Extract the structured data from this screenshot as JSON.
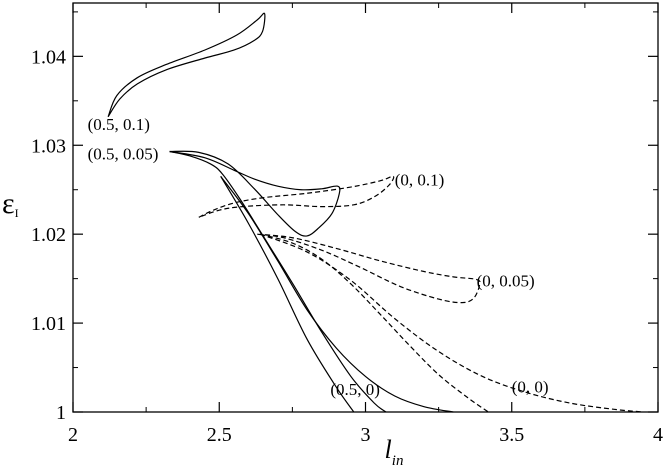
{
  "chart_data": {
    "type": "line",
    "title": "",
    "xlabel": "l",
    "xlabel_sub": "in",
    "ylabel": "ε",
    "ylabel_sub": "I",
    "xlim": [
      2,
      4
    ],
    "ylim": [
      1.0,
      1.046
    ],
    "grid": false,
    "legend": "none",
    "x_ticks": [
      2,
      2.5,
      3,
      3.5,
      4
    ],
    "x_tick_labels": [
      "2",
      "2.5",
      "3",
      "3.5",
      "4"
    ],
    "y_ticks": [
      1.0,
      1.01,
      1.02,
      1.03,
      1.04
    ],
    "y_tick_labels": [
      "1",
      "1.01",
      "1.02",
      "1.03",
      "1.04"
    ],
    "series": [
      {
        "label": "(0.5, 0.1)",
        "style": "solid",
        "points": [
          [
            2.12,
            1.0332
          ],
          [
            2.16,
            1.0352
          ],
          [
            2.22,
            1.0369
          ],
          [
            2.32,
            1.0385
          ],
          [
            2.45,
            1.0398
          ],
          [
            2.55,
            1.0407
          ],
          [
            2.62,
            1.0418
          ],
          [
            2.648,
            1.0428
          ],
          [
            2.655,
            1.0448
          ],
          [
            2.63,
            1.0441
          ],
          [
            2.56,
            1.0424
          ],
          [
            2.45,
            1.0407
          ],
          [
            2.32,
            1.0391
          ],
          [
            2.22,
            1.0376
          ],
          [
            2.15,
            1.0356
          ],
          [
            2.12,
            1.0332
          ]
        ]
      },
      {
        "label": "(0.5, 0.05)",
        "style": "solid",
        "points": [
          [
            2.33,
            1.0293
          ],
          [
            2.45,
            1.0286
          ],
          [
            2.55,
            1.0272
          ],
          [
            2.62,
            1.0262
          ],
          [
            2.7,
            1.0254
          ],
          [
            2.78,
            1.025
          ],
          [
            2.85,
            1.0251
          ],
          [
            2.905,
            1.0254
          ],
          [
            2.91,
            1.0245
          ],
          [
            2.885,
            1.0223
          ],
          [
            2.84,
            1.0207
          ],
          [
            2.8,
            1.0198
          ],
          [
            2.76,
            1.0203
          ],
          [
            2.7,
            1.0222
          ],
          [
            2.62,
            1.0251
          ],
          [
            2.53,
            1.0279
          ],
          [
            2.43,
            1.0292
          ],
          [
            2.33,
            1.0293
          ]
        ]
      },
      {
        "label": "(0.5, 0.05)",
        "style": "solid",
        "points": [
          [
            2.33,
            1.0293
          ],
          [
            2.4,
            1.0288
          ],
          [
            2.47,
            1.0279
          ],
          [
            2.51,
            1.0268
          ],
          [
            2.57,
            1.024
          ],
          [
            2.65,
            1.0198
          ],
          [
            2.75,
            1.0145
          ],
          [
            2.85,
            1.009
          ],
          [
            2.95,
            1.004
          ],
          [
            3.03,
            1.001
          ],
          [
            3.07,
            1.0
          ]
        ]
      },
      {
        "label": "(0.5, 0)",
        "style": "solid",
        "points": [
          [
            2.505,
            1.0265
          ],
          [
            2.6,
            1.0212
          ],
          [
            2.7,
            1.015
          ],
          [
            2.8,
            1.0082
          ],
          [
            2.9,
            1.0028
          ],
          [
            2.96,
            1.0
          ]
        ]
      },
      {
        "label": "(0.5, 0)",
        "style": "solid",
        "points": [
          [
            2.505,
            1.0265
          ],
          [
            2.6,
            1.0223
          ],
          [
            2.7,
            1.017
          ],
          [
            2.8,
            1.0115
          ],
          [
            2.9,
            1.0072
          ],
          [
            3.0,
            1.004
          ],
          [
            3.1,
            1.0018
          ],
          [
            3.2,
            1.0006
          ],
          [
            3.3,
            1.0
          ]
        ]
      },
      {
        "label": "(0, 0.1)",
        "style": "dashed",
        "points": [
          [
            2.43,
            1.0219
          ],
          [
            2.48,
            1.0227
          ],
          [
            2.55,
            1.0235
          ],
          [
            2.65,
            1.0241
          ],
          [
            2.8,
            1.0246
          ],
          [
            2.95,
            1.0253
          ],
          [
            3.05,
            1.026
          ],
          [
            3.095,
            1.0265
          ],
          [
            3.08,
            1.0255
          ],
          [
            3.03,
            1.0242
          ],
          [
            2.96,
            1.0233
          ],
          [
            2.85,
            1.0231
          ],
          [
            2.72,
            1.0233
          ],
          [
            2.58,
            1.0231
          ],
          [
            2.5,
            1.0227
          ],
          [
            2.43,
            1.0219
          ]
        ]
      },
      {
        "label": "(0, 0.05)",
        "style": "dashed",
        "points": [
          [
            2.63,
            1.02
          ],
          [
            2.75,
            1.0196
          ],
          [
            2.9,
            1.0184
          ],
          [
            3.05,
            1.017
          ],
          [
            3.2,
            1.0158
          ],
          [
            3.3,
            1.0152
          ],
          [
            3.38,
            1.0149
          ],
          [
            3.39,
            1.0143
          ],
          [
            3.37,
            1.0128
          ],
          [
            3.33,
            1.0123
          ],
          [
            3.25,
            1.0127
          ],
          [
            3.12,
            1.0141
          ],
          [
            2.98,
            1.0163
          ],
          [
            2.85,
            1.0182
          ],
          [
            2.72,
            1.0196
          ],
          [
            2.63,
            1.02
          ]
        ]
      },
      {
        "label": "(0, 0)",
        "style": "dashed",
        "points": [
          [
            2.64,
            1.02
          ],
          [
            2.75,
            1.019
          ],
          [
            2.85,
            1.0172
          ],
          [
            2.95,
            1.0144
          ],
          [
            3.05,
            1.011
          ],
          [
            3.15,
            1.0075
          ],
          [
            3.25,
            1.0042
          ],
          [
            3.35,
            1.0016
          ],
          [
            3.42,
            1.0
          ]
        ]
      },
      {
        "label": "(0, 0)",
        "style": "dashed",
        "points": [
          [
            2.64,
            1.02
          ],
          [
            2.8,
            1.018
          ],
          [
            2.95,
            1.0148
          ],
          [
            3.1,
            1.0105
          ],
          [
            3.25,
            1.0068
          ],
          [
            3.4,
            1.004
          ],
          [
            3.55,
            1.0022
          ],
          [
            3.7,
            1.001
          ],
          [
            3.85,
            1.0003
          ],
          [
            3.95,
            1.0
          ]
        ]
      }
    ],
    "annotations": [
      {
        "text": "(0.5, 0.1)",
        "x": 2.05,
        "y": 1.0317
      },
      {
        "text": "(0.5, 0.05)",
        "x": 2.05,
        "y": 1.0284
      },
      {
        "text": "(0, 0.1)",
        "x": 3.1,
        "y": 1.0255
      },
      {
        "text": "(0, 0.05)",
        "x": 3.38,
        "y": 1.0141
      },
      {
        "text": "(0, 0)",
        "x": 3.5,
        "y": 1.0022
      },
      {
        "text": "(0.5, 0)",
        "x": 2.88,
        "y": 1.0019
      }
    ]
  }
}
